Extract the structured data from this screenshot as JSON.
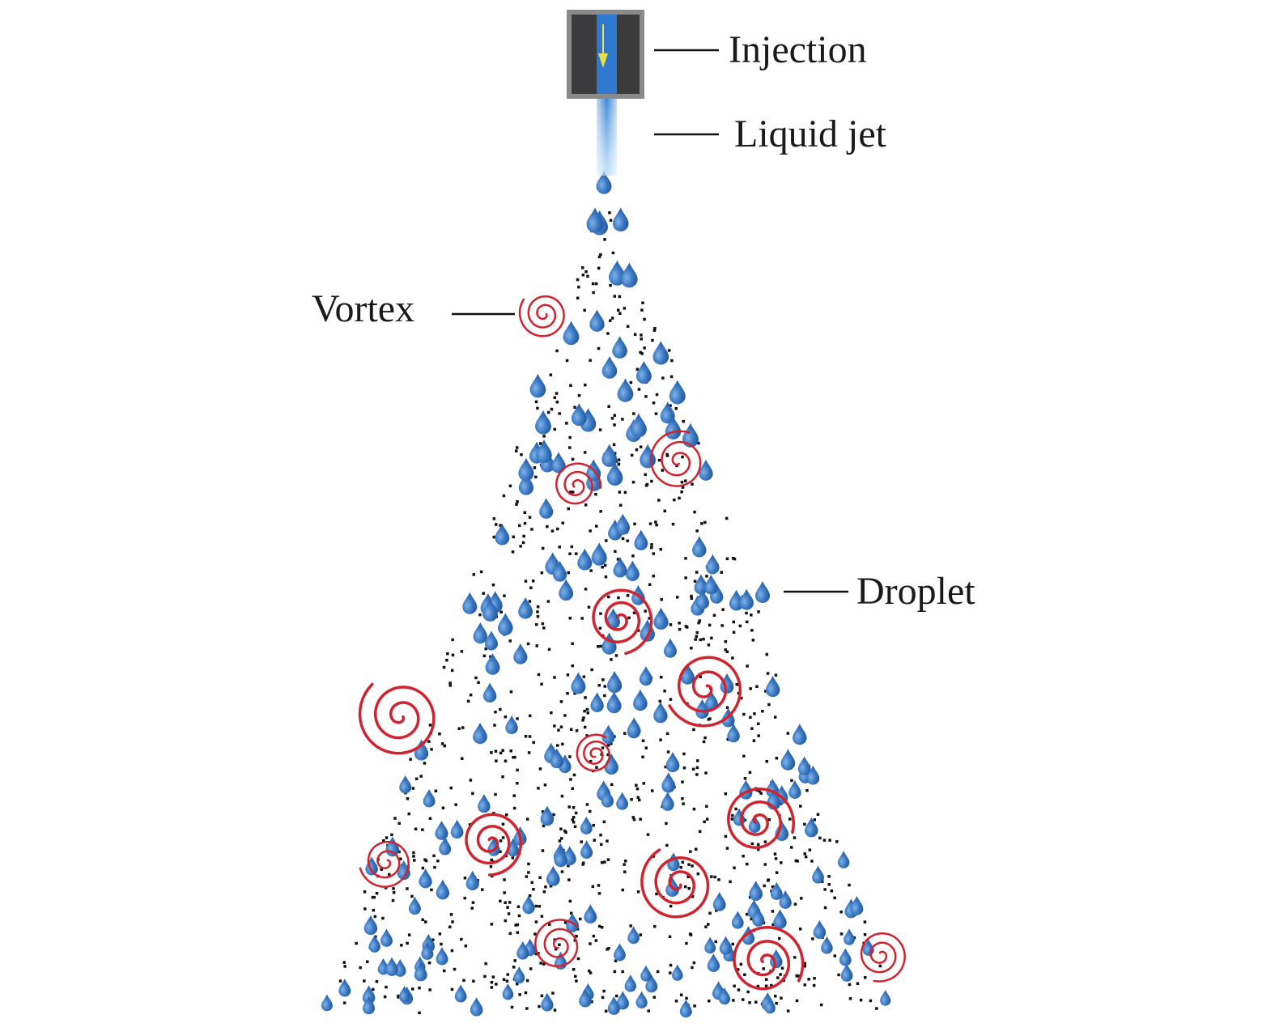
{
  "labels": [
    "Injection",
    "Liquid jet",
    "Vortex",
    "Droplet"
  ]
}
